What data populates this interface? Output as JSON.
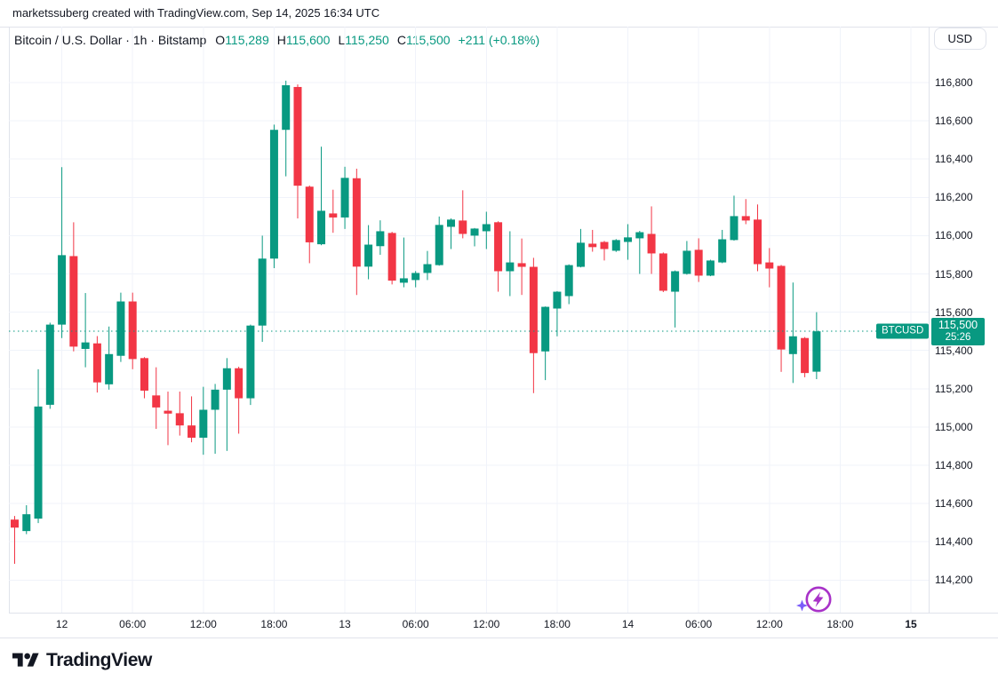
{
  "attribution": "marketssuberg created with TradingView.com, Sep 14, 2025 16:34 UTC",
  "header": {
    "symbol_info": "Bitcoin / U.S. Dollar · 1h · Bitstamp",
    "ohlc": [
      {
        "label": "O",
        "value": "115,289"
      },
      {
        "label": "H",
        "value": "115,600"
      },
      {
        "label": "L",
        "value": "115,250"
      },
      {
        "label": "C",
        "value": "115,500"
      }
    ],
    "change": "+211 (+0.18%)"
  },
  "currency_button": "USD",
  "price_scale": {
    "labels": [
      "116,800",
      "116,600",
      "116,400",
      "116,200",
      "116,000",
      "115,800",
      "115,600",
      "115,400",
      "115,200",
      "115,000",
      "114,800",
      "114,600",
      "114,400",
      "114,200"
    ],
    "last_price_label": {
      "symbol": "BTCUSD",
      "price": "115,500",
      "countdown": "25:26",
      "value": 115500
    }
  },
  "time_scale": {
    "labels": [
      {
        "text": "12",
        "index": 4,
        "bold": false
      },
      {
        "text": "06:00",
        "index": 10,
        "bold": false
      },
      {
        "text": "12:00",
        "index": 16,
        "bold": false
      },
      {
        "text": "18:00",
        "index": 22,
        "bold": false
      },
      {
        "text": "13",
        "index": 28,
        "bold": false
      },
      {
        "text": "06:00",
        "index": 34,
        "bold": false
      },
      {
        "text": "12:00",
        "index": 40,
        "bold": false
      },
      {
        "text": "18:00",
        "index": 46,
        "bold": false
      },
      {
        "text": "14",
        "index": 52,
        "bold": false
      },
      {
        "text": "06:00",
        "index": 58,
        "bold": false
      },
      {
        "text": "12:00",
        "index": 64,
        "bold": false
      },
      {
        "text": "18:00",
        "index": 70,
        "bold": false
      },
      {
        "text": "15",
        "index": 76,
        "bold": true
      }
    ]
  },
  "logo_text": "TradingView",
  "colors": {
    "up": "#089981",
    "down": "#F23645",
    "text": "#131722",
    "grid": "#F0F3FA",
    "border": "#E0E3EB",
    "flash_icon": "#A832C8",
    "flash_sparkle": "#7B5CFA",
    "background": "#FFFFFF"
  },
  "flash_icon": {
    "name": "lightning-boost-icon",
    "candle_index": 68
  },
  "chart_data": {
    "type": "candlestick",
    "title": "Bitcoin / U.S. Dollar 1h Bitstamp",
    "ylabel": "USD",
    "ylim": [
      114100,
      116900
    ],
    "grid_step": 200,
    "grid": true,
    "current_price": 115500,
    "columns": [
      "time",
      "open",
      "high",
      "low",
      "close"
    ],
    "series": [
      [
        "Sep 11 20:00",
        114516,
        114535,
        114285,
        114474
      ],
      [
        "Sep 11 21:00",
        114456,
        114591,
        114440,
        114544
      ],
      [
        "Sep 11 22:00",
        114521,
        115302,
        114498,
        115107
      ],
      [
        "Sep 11 23:00",
        115116,
        115545,
        115095,
        115535
      ],
      [
        "Sep 12 00:00",
        115535,
        116358,
        115465,
        115898
      ],
      [
        "Sep 12 01:00",
        115893,
        116070,
        115395,
        115420
      ],
      [
        "Sep 12 02:00",
        115408,
        115700,
        115312,
        115442
      ],
      [
        "Sep 12 03:00",
        115437,
        115475,
        115180,
        115233
      ],
      [
        "Sep 12 04:00",
        115223,
        115525,
        115195,
        115381
      ],
      [
        "Sep 12 05:00",
        115372,
        115702,
        115340,
        115656
      ],
      [
        "Sep 12 06:00",
        115656,
        115702,
        115302,
        115355
      ],
      [
        "Sep 12 07:00",
        115360,
        115365,
        115150,
        115190
      ],
      [
        "Sep 12 08:00",
        115165,
        115312,
        114990,
        115102
      ],
      [
        "Sep 12 09:00",
        115085,
        115185,
        114905,
        115070
      ],
      [
        "Sep 12 10:00",
        115072,
        115185,
        114955,
        115008
      ],
      [
        "Sep 12 11:00",
        115008,
        115160,
        114920,
        114944
      ],
      [
        "Sep 12 12:00",
        114944,
        115210,
        114855,
        115090
      ],
      [
        "Sep 12 13:00",
        115090,
        115225,
        114860,
        115195
      ],
      [
        "Sep 12 14:00",
        115195,
        115360,
        114875,
        115307
      ],
      [
        "Sep 12 15:00",
        115307,
        115315,
        114965,
        115150
      ],
      [
        "Sep 12 16:00",
        115150,
        115535,
        115115,
        115530
      ],
      [
        "Sep 12 17:00",
        115530,
        116000,
        115445,
        115880
      ],
      [
        "Sep 12 18:00",
        115880,
        116580,
        115830,
        116553
      ],
      [
        "Sep 12 19:00",
        116553,
        116810,
        116310,
        116786
      ],
      [
        "Sep 12 20:00",
        116777,
        116790,
        116090,
        116261
      ],
      [
        "Sep 12 21:00",
        116256,
        116262,
        115856,
        115965
      ],
      [
        "Sep 12 22:00",
        115955,
        116465,
        115950,
        116130
      ],
      [
        "Sep 12 23:00",
        116116,
        116240,
        116015,
        116095
      ],
      [
        "Sep 13 00:00",
        116095,
        116360,
        116035,
        116302
      ],
      [
        "Sep 13 01:00",
        116300,
        116350,
        115690,
        115838
      ],
      [
        "Sep 13 02:00",
        115838,
        116055,
        115772,
        115953
      ],
      [
        "Sep 13 03:00",
        115945,
        116080,
        115900,
        116023
      ],
      [
        "Sep 13 04:00",
        116014,
        116020,
        115745,
        115765
      ],
      [
        "Sep 13 05:00",
        115754,
        115990,
        115730,
        115777
      ],
      [
        "Sep 13 06:00",
        115768,
        115815,
        115730,
        115805
      ],
      [
        "Sep 13 07:00",
        115805,
        115920,
        115768,
        115851
      ],
      [
        "Sep 13 08:00",
        115846,
        116100,
        115843,
        116056
      ],
      [
        "Sep 13 09:00",
        116046,
        116090,
        115930,
        116084
      ],
      [
        "Sep 13 10:00",
        116079,
        116237,
        115986,
        116009
      ],
      [
        "Sep 13 11:00",
        116000,
        116040,
        115944,
        116037
      ],
      [
        "Sep 13 12:00",
        116023,
        116125,
        115930,
        116060
      ],
      [
        "Sep 13 13:00",
        116070,
        116075,
        115707,
        115814
      ],
      [
        "Sep 13 14:00",
        115814,
        116023,
        115684,
        115860
      ],
      [
        "Sep 13 15:00",
        115856,
        115985,
        115690,
        115837
      ],
      [
        "Sep 13 16:00",
        115837,
        115884,
        115177,
        115386
      ],
      [
        "Sep 13 17:00",
        115395,
        115630,
        115245,
        115628
      ],
      [
        "Sep 13 18:00",
        115619,
        115710,
        115474,
        115707
      ],
      [
        "Sep 13 19:00",
        115684,
        115850,
        115642,
        115846
      ],
      [
        "Sep 13 20:00",
        115837,
        116035,
        115834,
        115963
      ],
      [
        "Sep 13 21:00",
        115958,
        116030,
        115916,
        115940
      ],
      [
        "Sep 13 22:00",
        115967,
        115972,
        115870,
        115930
      ],
      [
        "Sep 13 23:00",
        115921,
        115982,
        115915,
        115977
      ],
      [
        "Sep 14 00:00",
        115967,
        116060,
        115874,
        115991
      ],
      [
        "Sep 14 01:00",
        115986,
        116025,
        115800,
        116018
      ],
      [
        "Sep 14 02:00",
        116009,
        116153,
        115800,
        115907
      ],
      [
        "Sep 14 03:00",
        115907,
        115912,
        115705,
        115712
      ],
      [
        "Sep 14 04:00",
        115707,
        115818,
        115520,
        115814
      ],
      [
        "Sep 14 05:00",
        115800,
        115972,
        115796,
        115921
      ],
      [
        "Sep 14 06:00",
        115926,
        115986,
        115758,
        115791
      ],
      [
        "Sep 14 07:00",
        115791,
        115874,
        115788,
        115870
      ],
      [
        "Sep 14 08:00",
        115860,
        116030,
        115856,
        115981
      ],
      [
        "Sep 14 09:00",
        115977,
        116209,
        115974,
        116102
      ],
      [
        "Sep 14 10:00",
        116102,
        116191,
        116060,
        116079
      ],
      [
        "Sep 14 11:00",
        116084,
        116163,
        115814,
        115851
      ],
      [
        "Sep 14 12:00",
        115860,
        115935,
        115730,
        115828
      ],
      [
        "Sep 14 13:00",
        115842,
        115847,
        115288,
        115405
      ],
      [
        "Sep 14 14:00",
        115381,
        115755,
        115230,
        115474
      ],
      [
        "Sep 14 15:00",
        115465,
        115470,
        115260,
        115282
      ],
      [
        "Sep 14 16:00",
        115289,
        115600,
        115250,
        115500
      ]
    ]
  }
}
